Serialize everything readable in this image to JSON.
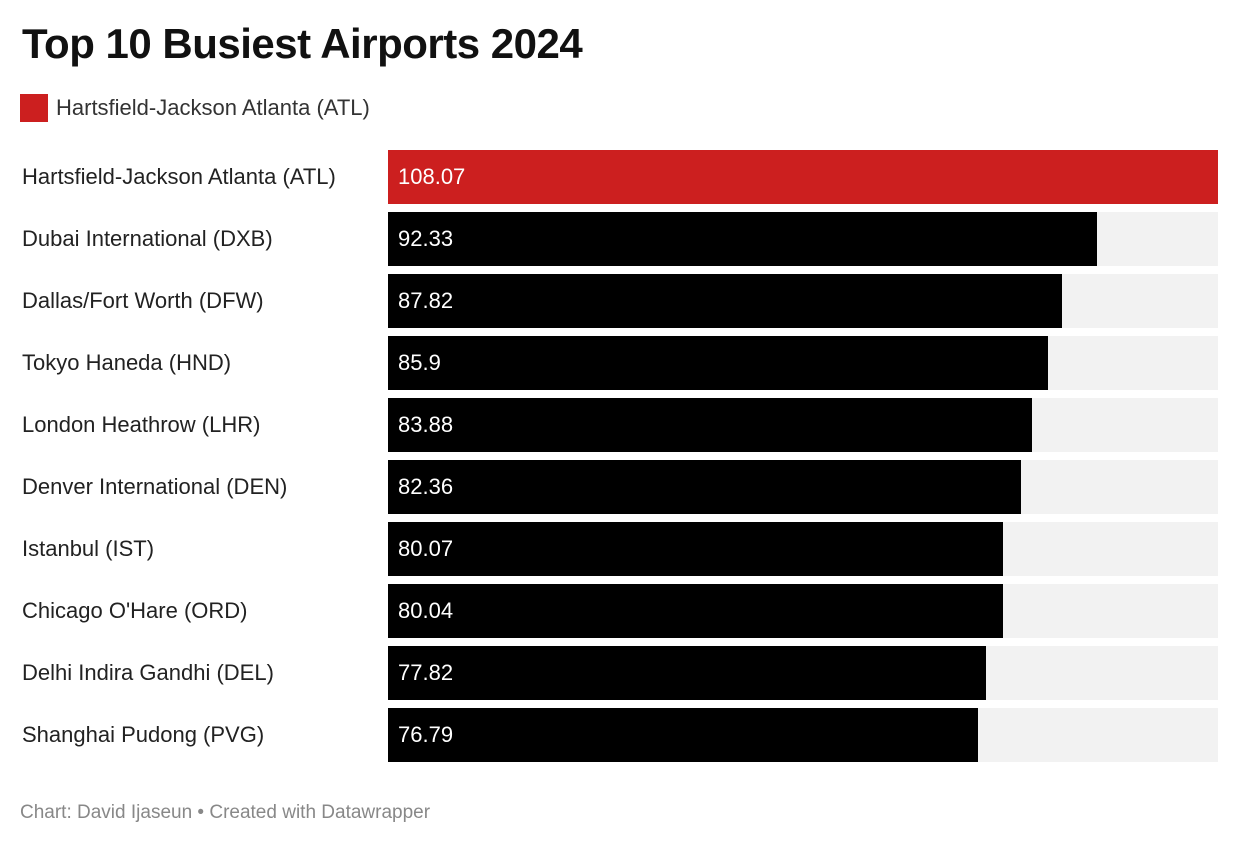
{
  "chart_data": {
    "type": "bar",
    "orientation": "horizontal",
    "title": "Top 10 Busiest Airports 2024",
    "legend": [
      {
        "label": "Hartsfield-Jackson Atlanta (ATL)",
        "color": "#cc1f1f"
      }
    ],
    "categories": [
      "Hartsfield-Jackson Atlanta (ATL)",
      "Dubai International (DXB)",
      "Dallas/Fort Worth (DFW)",
      "Tokyo Haneda (HND)",
      "London Heathrow (LHR)",
      "Denver International (DEN)",
      "Istanbul (IST)",
      "Chicago O'Hare (ORD)",
      "Delhi Indira Gandhi (DEL)",
      "Shanghai Pudong (PVG)"
    ],
    "values": [
      108.07,
      92.33,
      87.82,
      85.9,
      83.88,
      82.36,
      80.07,
      80.04,
      77.82,
      76.79
    ],
    "value_labels": [
      "108.07",
      "92.33",
      "87.82",
      "85.9",
      "83.88",
      "82.36",
      "80.07",
      "80.04",
      "77.82",
      "76.79"
    ],
    "highlight_index": 0,
    "xlim": [
      0,
      108.07
    ],
    "xlabel": "",
    "ylabel": "",
    "grid": false
  },
  "colors": {
    "highlight": "#cc1f1f",
    "bar": "#000000",
    "track": "#f2f2f2"
  },
  "footer": "Chart: David Ijaseun • Created with Datawrapper"
}
